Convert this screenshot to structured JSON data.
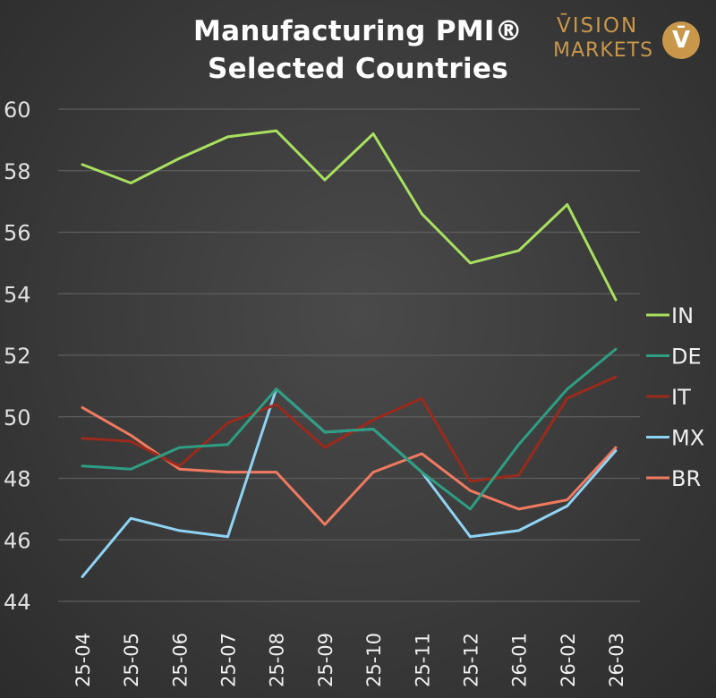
{
  "title_line1": "Manufacturing PMI®",
  "title_line2": "Selected Countries",
  "logo": {
    "line1": "V̄ISION",
    "line2": "MARKETS",
    "badge": "V̄"
  },
  "chart_data": {
    "type": "line",
    "title": "Manufacturing PMI® Selected Countries",
    "xlabel": "",
    "ylabel": "",
    "ylim": [
      44,
      60
    ],
    "yticks": [
      44,
      46,
      48,
      50,
      52,
      54,
      56,
      58,
      60
    ],
    "grid": true,
    "legend_position": "right",
    "x": [
      "25-04",
      "25-05",
      "25-06",
      "25-07",
      "25-08",
      "25-09",
      "25-10",
      "25-11",
      "25-12",
      "26-01",
      "26-02",
      "26-03"
    ],
    "series": [
      {
        "name": "IN",
        "color": "#a8e05f",
        "values": [
          58.2,
          57.6,
          58.4,
          59.1,
          59.3,
          57.7,
          59.2,
          56.6,
          55.0,
          55.4,
          56.9,
          53.8
        ]
      },
      {
        "name": "DE",
        "color": "#2e9e83",
        "values": [
          48.4,
          48.3,
          49.0,
          49.1,
          50.9,
          49.5,
          49.6,
          48.2,
          47.0,
          49.1,
          50.9,
          52.2
        ]
      },
      {
        "name": "IT",
        "color": "#9b2a1c",
        "values": [
          49.3,
          49.2,
          48.4,
          49.8,
          50.4,
          49.0,
          49.9,
          50.6,
          47.9,
          48.1,
          50.6,
          51.3
        ]
      },
      {
        "name": "MX",
        "color": "#8fd3f4",
        "values": [
          44.8,
          46.7,
          46.3,
          46.1,
          50.9,
          49.5,
          49.6,
          48.2,
          46.1,
          46.3,
          47.1,
          48.9
        ]
      },
      {
        "name": "BR",
        "color": "#f07a5f",
        "values": [
          50.3,
          49.4,
          48.3,
          48.2,
          48.2,
          46.5,
          48.2,
          48.8,
          47.6,
          47.0,
          47.3,
          49.0
        ]
      }
    ]
  }
}
